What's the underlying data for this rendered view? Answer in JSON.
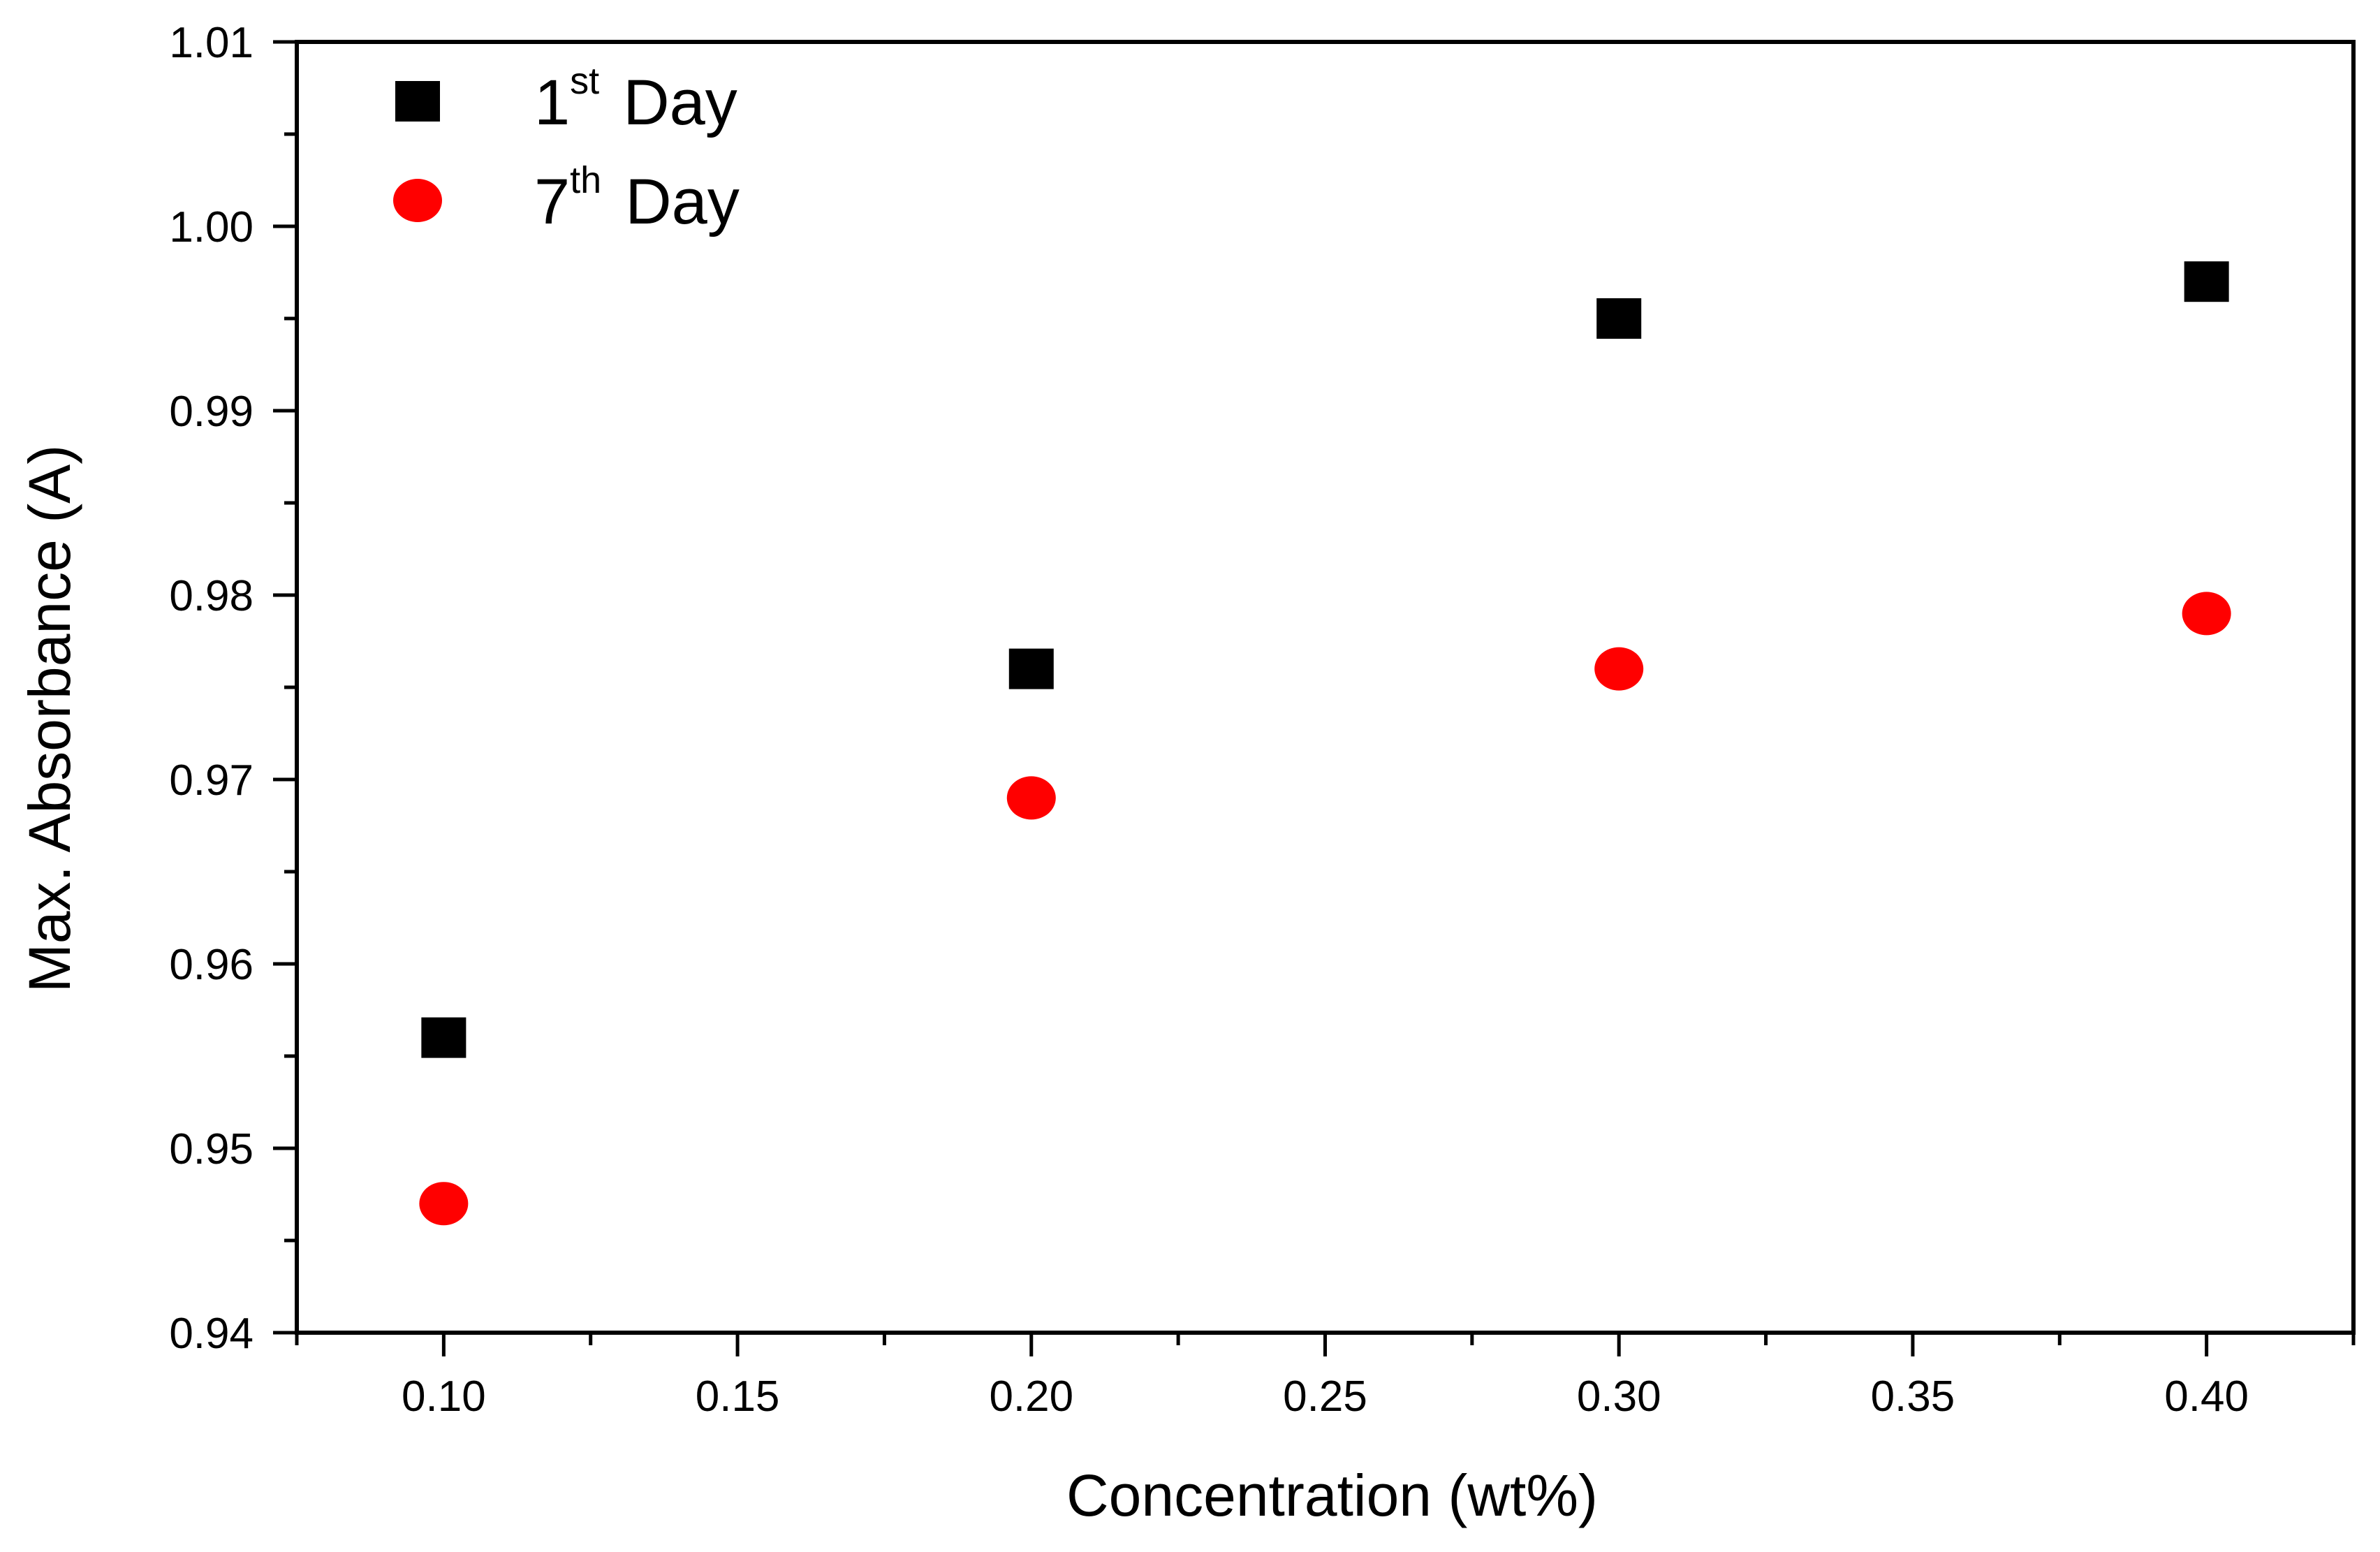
{
  "chart_data": {
    "type": "scatter",
    "title": "",
    "xlabel": "Concentration (wt%)",
    "ylabel": "Max. Absorbance (A)",
    "xlim": [
      0.075,
      0.425
    ],
    "ylim": [
      0.94,
      1.01
    ],
    "xticks": [
      0.1,
      0.15,
      0.2,
      0.25,
      0.3,
      0.35,
      0.4
    ],
    "xtick_labels": [
      "0.10",
      "0.15",
      "0.20",
      "0.25",
      "0.30",
      "0.35",
      "0.40"
    ],
    "yticks": [
      0.94,
      0.95,
      0.96,
      0.97,
      0.98,
      0.99,
      1.0,
      1.01
    ],
    "ytick_labels": [
      "0.94",
      "0.95",
      "0.96",
      "0.97",
      "0.98",
      "0.99",
      "1.00",
      "1.01"
    ],
    "grid": false,
    "legend_position": "top-left",
    "series": [
      {
        "name": "1st Day",
        "legend_number": "1",
        "legend_sup": "st",
        "legend_word": "Day",
        "marker": "square",
        "color": "#000000",
        "x": [
          0.1,
          0.2,
          0.3,
          0.4
        ],
        "y": [
          0.956,
          0.976,
          0.995,
          0.997
        ]
      },
      {
        "name": "7th Day",
        "legend_number": "7",
        "legend_sup": "th",
        "legend_word": "Day",
        "marker": "circle",
        "color": "#ff0000",
        "x": [
          0.1,
          0.2,
          0.3,
          0.4
        ],
        "y": [
          0.947,
          0.969,
          0.976,
          0.979
        ]
      }
    ]
  }
}
